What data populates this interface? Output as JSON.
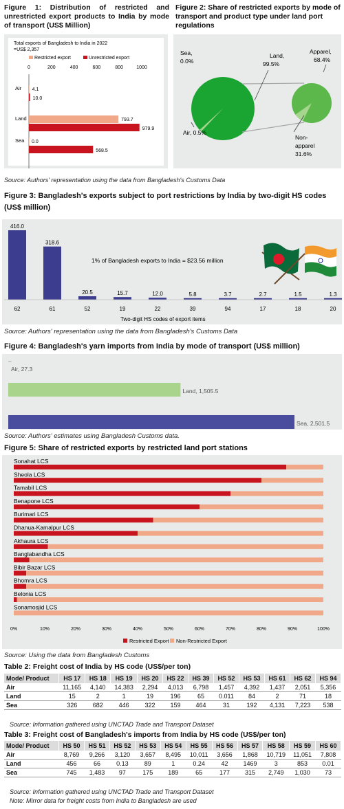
{
  "fig1": {
    "caption": "Figure 1: Distribution of restricted and unrestricted export products to India by mode of transport (US$ Million)",
    "note_line1": "Total exports of Bangladesh to India in 2022",
    "note_line2": "=US$ 2,357",
    "legend_restricted": "Restricted export",
    "legend_unrestricted": "Unrestricted export",
    "colors": {
      "restricted": "#f0a888",
      "unrestricted": "#c8141e"
    },
    "chart_data": {
      "type": "bar",
      "orientation": "horizontal",
      "categories": [
        "Air",
        "Land",
        "Sea"
      ],
      "series": [
        {
          "name": "Restricted export",
          "values": [
            4.1,
            793.7,
            0.0
          ]
        },
        {
          "name": "Unrestricted export",
          "values": [
            10.0,
            979.9,
            568.5
          ]
        }
      ],
      "value_labels_restricted": [
        "4.1",
        "793.7",
        "0.0"
      ],
      "value_labels_unrestricted": [
        "10.0",
        "979.9",
        "568.5"
      ],
      "xlim": [
        0,
        1000
      ],
      "xticks": [
        "0",
        "200",
        "400",
        "600",
        "800",
        "1000"
      ]
    }
  },
  "fig2": {
    "caption": "Figure 2: Share of restricted exports by mode of transport and product type under land port regulations",
    "labels": {
      "sea": "Sea,",
      "sea_v": "0.0%",
      "land": "Land,",
      "land_v": "99.5%",
      "air": "Air, 0.5%",
      "apparel": "Apparel,",
      "apparel_v": "68.4%",
      "nonapparel1": "Non-",
      "nonapparel2": "apparel",
      "nonapparel_v": "31.6%"
    },
    "colors": {
      "dark": "#1aa532",
      "light": "#5cb84a",
      "pale": "#a6d58e"
    },
    "chart_data": [
      {
        "type": "pie",
        "slices": [
          {
            "name": "Land",
            "value": 99.5
          },
          {
            "name": "Air",
            "value": 0.5
          },
          {
            "name": "Sea",
            "value": 0.0
          }
        ]
      },
      {
        "type": "pie",
        "slices": [
          {
            "name": "Apparel",
            "value": 68.4
          },
          {
            "name": "Non-apparel",
            "value": 31.6
          }
        ]
      }
    ]
  },
  "source1": "Source: Authors' representation using the data from Bangladesh's Customs Data",
  "fig3": {
    "caption": "Figure 3: Bangladesh's exports subject to port restrictions by India by two-digit HS codes (US$ million)",
    "annotation": "1% of Bangladesh exports to India = $23.56 million",
    "xlabel": "Two-digit HS codes of export items",
    "color": "#3c3d8e",
    "chart_data": {
      "type": "bar",
      "categories": [
        "62",
        "61",
        "52",
        "19",
        "22",
        "39",
        "94",
        "17",
        "18",
        "20"
      ],
      "values": [
        416.0,
        318.6,
        20.5,
        15.7,
        12.0,
        5.8,
        3.7,
        2.7,
        1.5,
        1.3
      ],
      "value_labels": [
        "416.0",
        "318.6",
        "20.5",
        "15.7",
        "12.0",
        "5.8",
        "3.7",
        "2.7",
        "1.5",
        "1.3"
      ]
    }
  },
  "source2": "Source: Authors' representation using the data from Bangladesh's Customs Data",
  "fig4": {
    "caption": "Figure 4: Bangladesh's yarn imports from India by mode of transport (US$ million)",
    "colors": {
      "air": "#c8c8c8",
      "land": "#a8d48c",
      "sea": "#4a4c9e"
    },
    "chart_data": {
      "type": "bar",
      "orientation": "horizontal",
      "categories": [
        "Air",
        "Land",
        "Sea"
      ],
      "values": [
        27.3,
        1505.5,
        2501.5
      ],
      "labels": [
        "Air, 27.3",
        "Land, 1,505.5",
        "Sea, 2,501.5"
      ]
    }
  },
  "source3": "Source: Authors' estimates using Bangladesh Customs data.",
  "fig5": {
    "caption": "Figure 5: Share of restricted exports by restricted land port stations",
    "legend_restricted": "Restricted Export",
    "legend_nonrestricted": "Non-Restricted Export",
    "colors": {
      "restricted": "#c8141e",
      "nonrestricted": "#f0a888"
    },
    "chart_data": {
      "type": "bar",
      "orientation": "horizontal",
      "stacked": "percent",
      "categories": [
        "Sonahat LCS",
        "Sheola LCS",
        "Tamabil LCS",
        "Benapone LCS",
        "Burimari LCS",
        "Dhanua-Kamalpur LCS",
        "Akhaura LCS",
        "Banglabandha LCS",
        "Bibir Bazar LCS",
        "Bhomra LCS",
        "Belonia LCS",
        "Sonamosjid LCS"
      ],
      "restricted_percent": [
        88,
        80,
        70,
        60,
        45,
        40,
        11,
        5,
        4,
        4,
        1,
        0
      ],
      "xticks": [
        "0%",
        "10%",
        "20%",
        "30%",
        "40%",
        "50%",
        "60%",
        "70%",
        "80%",
        "90%",
        "100%"
      ]
    }
  },
  "source4": "Source: Using the data from Bangladesh Customs",
  "table2": {
    "caption": "Table 2: Freight cost of India by HS code (US$/per ton)",
    "header": [
      "Mode/ Product",
      "HS 17",
      "HS 18",
      "HS 19",
      "HS 20",
      "HS 22",
      "HS 39",
      "HS 52",
      "HS 53",
      "HS 61",
      "HS 62",
      "HS 94"
    ],
    "rows": [
      [
        "Air",
        "11,165",
        "4,140",
        "14,383",
        "2,294",
        "4,013",
        "6,798",
        "1,457",
        "4,392",
        "1,437",
        "2,051",
        "5,356"
      ],
      [
        "Land",
        "15",
        "2",
        "1",
        "19",
        "196",
        "65",
        "0.011",
        "84",
        "2",
        "71",
        "18"
      ],
      [
        "Sea",
        "326",
        "682",
        "446",
        "322",
        "159",
        "464",
        "31",
        "192",
        "4,131",
        "7,223",
        "538"
      ]
    ],
    "source": "Source: Information gathered using UNCTAD Trade and Transport Dataset"
  },
  "table3": {
    "caption": "Table 3: Freight cost of Bangladesh's imports from India by HS code (US$/per ton)",
    "header": [
      "Mode/ Product",
      "HS 50",
      "HS 51",
      "HS 52",
      "HS 53",
      "HS 54",
      "HS 55",
      "HS 56",
      "HS 57",
      "HS 58",
      "HS 59",
      "HS 60"
    ],
    "rows": [
      [
        "Air",
        "8,769",
        "9,266",
        "3,120",
        "3,657",
        "8,495",
        "10,011",
        "3,656",
        "1,868",
        "10,719",
        "11,051",
        "7,808"
      ],
      [
        "Land",
        "456",
        "66",
        "0.13",
        "89",
        "1",
        "0.24",
        "42",
        "1469",
        "3",
        "853",
        "0.01"
      ],
      [
        "Sea",
        "745",
        "1,483",
        "97",
        "175",
        "189",
        "65",
        "177",
        "315",
        "2,749",
        "1,030",
        "73"
      ]
    ],
    "source": "Source: Information gathered using UNCTAD Trade and Transport Dataset",
    "note": "Note: Mirror data for freight costs from India to Bangladesh are used"
  }
}
